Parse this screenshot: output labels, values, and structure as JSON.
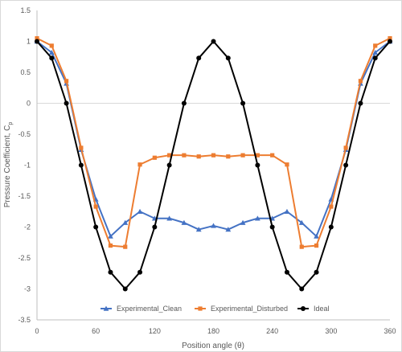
{
  "chart_data": {
    "type": "line",
    "xlabel": "Position angle (θ)",
    "ylabel_main": "Pressure Coefficient, C",
    "ylabel_sub": "p",
    "xlim": [
      0,
      360
    ],
    "ylim": [
      -3.5,
      1.5
    ],
    "x_ticks": [
      0,
      60,
      120,
      180,
      240,
      300,
      360
    ],
    "y_ticks": [
      1.5,
      1,
      0.5,
      0,
      -0.5,
      -1,
      -1.5,
      -2,
      -2.5,
      -3,
      -3.5
    ],
    "x_tick_labels": [
      "0",
      "60",
      "120",
      "180",
      "240",
      "300",
      "360"
    ],
    "y_tick_labels": [
      "1.5",
      "1",
      "0.5",
      "0",
      "-0.5",
      "-1",
      "-1.5",
      "-2",
      "-2.5",
      "-3",
      "-3.5"
    ],
    "grid": "horizontal line at 0 only",
    "legend_position": "bottom",
    "series": [
      {
        "name": "Experimental_Clean",
        "color": "#4472C4",
        "marker": "triangle",
        "x": [
          0,
          15,
          30,
          45,
          60,
          75,
          90,
          105,
          120,
          135,
          150,
          165,
          180,
          195,
          210,
          225,
          240,
          255,
          270,
          285,
          300,
          315,
          330,
          345,
          360
        ],
        "y": [
          1.0,
          0.82,
          0.32,
          -0.75,
          -1.55,
          -2.15,
          -1.93,
          -1.75,
          -1.86,
          -1.86,
          -1.93,
          -2.04,
          -1.98,
          -2.04,
          -1.93,
          -1.86,
          -1.86,
          -1.75,
          -1.93,
          -2.15,
          -1.55,
          -0.75,
          0.32,
          0.82,
          1.0
        ]
      },
      {
        "name": "Experimental_Disturbed",
        "color": "#ED7D31",
        "marker": "square",
        "x": [
          0,
          15,
          30,
          45,
          60,
          75,
          90,
          105,
          120,
          135,
          150,
          165,
          180,
          195,
          210,
          225,
          240,
          255,
          270,
          285,
          300,
          315,
          330,
          345,
          360
        ],
        "y": [
          1.05,
          0.93,
          0.36,
          -0.72,
          -1.67,
          -2.3,
          -2.32,
          -0.99,
          -0.88,
          -0.84,
          -0.84,
          -0.86,
          -0.84,
          -0.86,
          -0.84,
          -0.84,
          -0.84,
          -0.99,
          -2.32,
          -2.3,
          -1.67,
          -0.72,
          0.36,
          0.93,
          1.05
        ]
      },
      {
        "name": "Ideal",
        "color": "#000000",
        "marker": "circle",
        "x": [
          0,
          15,
          30,
          45,
          60,
          75,
          90,
          105,
          120,
          135,
          150,
          165,
          180,
          195,
          210,
          225,
          240,
          255,
          270,
          285,
          300,
          315,
          330,
          345,
          360
        ],
        "y": [
          1.0,
          0.73,
          0.0,
          -1.0,
          -2.0,
          -2.73,
          -3.0,
          -2.73,
          -2.0,
          -1.0,
          0.0,
          0.73,
          1.0,
          0.73,
          0.0,
          -1.0,
          -2.0,
          -2.73,
          -3.0,
          -2.73,
          -2.0,
          -1.0,
          0.0,
          0.73,
          1.0
        ]
      }
    ]
  }
}
